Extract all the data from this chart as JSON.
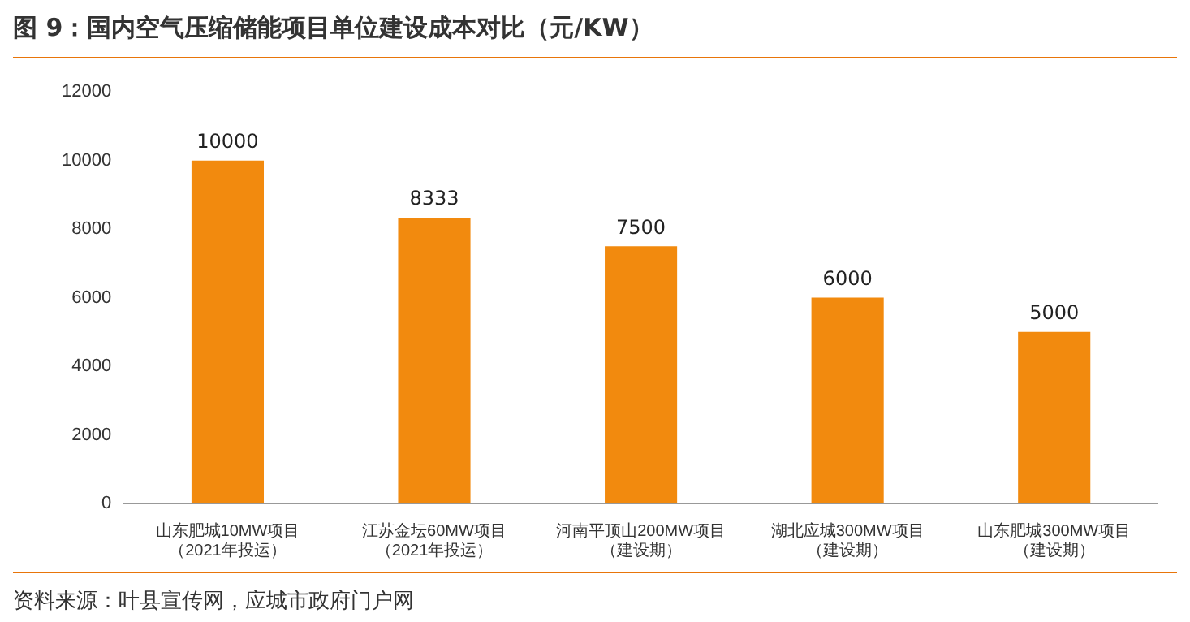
{
  "chart_data": {
    "type": "bar",
    "title": "图 9：国内空气压缩储能项目单位建设成本对比（元/KW）",
    "categories": [
      "山东肥城10MW项目（2021年投运）",
      "江苏金坛60MW项目（2021年投运）",
      "河南平顶山200MW项目（建设期）",
      "湖北应城300MW项目（建设期）",
      "山东肥城300MW项目（建设期）"
    ],
    "values": [
      10000,
      8333,
      7500,
      6000,
      5000
    ],
    "color": "#f28a0e",
    "ylim": [
      0,
      12000
    ],
    "yticks": [
      0,
      2000,
      4000,
      6000,
      8000,
      10000,
      12000
    ],
    "grid": false,
    "legend": false,
    "data_labels": true,
    "annotations": [
      "资料来源：叶县宣传网，应城市政府门户网"
    ]
  }
}
